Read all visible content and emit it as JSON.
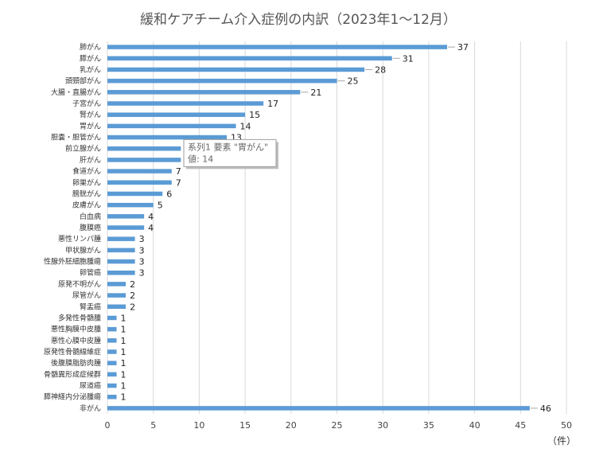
{
  "chart_data": {
    "type": "bar",
    "orientation": "horizontal",
    "title": "緩和ケアチーム介入症例の内訳（2023年1～12月）",
    "xlabel": "（件）",
    "ylabel": "",
    "xlim": [
      0,
      50
    ],
    "xticks": [
      0,
      5,
      10,
      15,
      20,
      25,
      30,
      35,
      40,
      45,
      50
    ],
    "grid": true,
    "bar_color": "#5b9bd5",
    "categories": [
      "肺がん",
      "膵がん",
      "乳がん",
      "頭頸部がん",
      "大腸・直腸がん",
      "子宮がん",
      "腎がん",
      "胃がん",
      "胆嚢・胆管がん",
      "前立腺がん",
      "肝がん",
      "食道がん",
      "卵巣がん",
      "膀胱がん",
      "皮膚がん",
      "白血病",
      "腹膜癌",
      "悪性リンパ腫",
      "甲状腺がん",
      "性腺外胚細胞腫瘍",
      "卵管癌",
      "原発不明がん",
      "尿管がん",
      "腎盂癌",
      "多発性骨髄腫",
      "悪性胸膜中皮腫",
      "悪性心膜中皮腫",
      "原発性骨髄線維症",
      "後腹膜脂肪肉腫",
      "骨髄異形成症候群",
      "尿道癌",
      "膵神経内分泌腫瘍",
      "非がん"
    ],
    "series": [
      {
        "values": [
          37,
          31,
          28,
          25,
          21,
          17,
          15,
          14,
          13,
          8,
          8,
          7,
          7,
          6,
          5,
          4,
          4,
          3,
          3,
          3,
          3,
          2,
          2,
          2,
          1,
          1,
          1,
          1,
          1,
          1,
          1,
          1,
          46
        ]
      }
    ],
    "tooltip": {
      "line1": "系列1 要素 \"胃がん\"",
      "line2": "値: 14",
      "category_index": 7
    }
  }
}
